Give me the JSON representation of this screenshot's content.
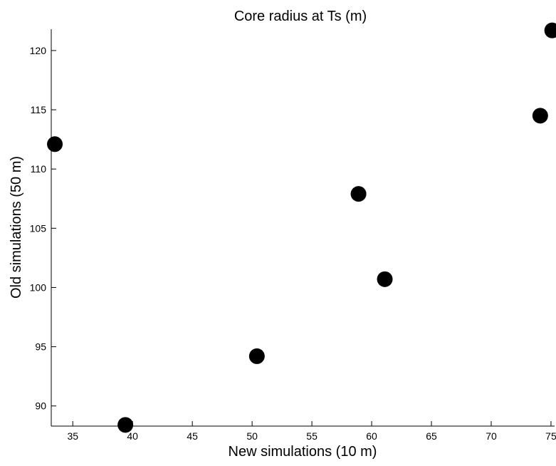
{
  "chart_data": {
    "type": "scatter",
    "title": "Core radius at Ts (m)",
    "xlabel": "New simulations (10 m)",
    "ylabel": "Old simulations (50 m)",
    "xlim": [
      33.2,
      75.3
    ],
    "ylim": [
      88.3,
      121.8
    ],
    "xticks": [
      35,
      40,
      45,
      50,
      55,
      60,
      65,
      70,
      75
    ],
    "yticks": [
      90,
      95,
      100,
      105,
      110,
      115,
      120
    ],
    "grid": false,
    "marker_color": "#000000",
    "points": [
      {
        "x": 33.5,
        "y": 112.1
      },
      {
        "x": 39.4,
        "y": 88.4
      },
      {
        "x": 50.4,
        "y": 94.2
      },
      {
        "x": 58.9,
        "y": 107.9
      },
      {
        "x": 61.1,
        "y": 100.7
      },
      {
        "x": 74.1,
        "y": 114.5
      },
      {
        "x": 75.1,
        "y": 121.7
      }
    ]
  }
}
